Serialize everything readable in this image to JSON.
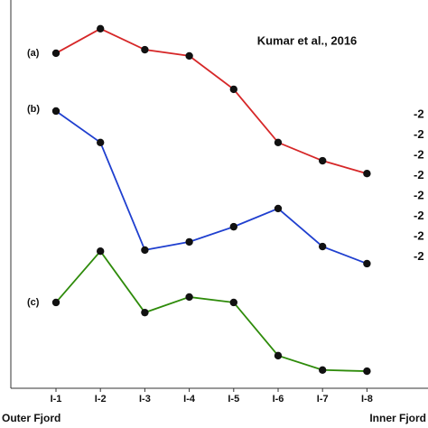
{
  "chart_data": {
    "type": "line",
    "annotation": "Kumar et al., 2016",
    "panel_labels": [
      "(a)",
      "(b)",
      "(c)"
    ],
    "categories": [
      "I-1",
      "I-2",
      "I-3",
      "I-4",
      "I-5",
      "I-6",
      "I-7",
      "I-8"
    ],
    "x_end_labels": [
      "Outer Fjord",
      "Inner Fjord"
    ],
    "right_tick_labels": [
      "-2",
      "-2",
      "-2",
      "-2",
      "-2",
      "-2",
      "-2",
      "-2"
    ],
    "ylim": [
      0,
      100
    ],
    "series": [
      {
        "color": "#d62728",
        "values": [
          86.3,
          92.6,
          87.2,
          85.6,
          77.0,
          63.3,
          58.6,
          55.3
        ]
      },
      {
        "color": "#1f3fcf",
        "values": [
          71.4,
          63.3,
          35.6,
          37.7,
          41.6,
          46.3,
          36.5,
          32.1
        ]
      },
      {
        "color": "#2e8b0a",
        "values": [
          22.1,
          35.3,
          19.5,
          23.5,
          22.1,
          8.4,
          4.7,
          4.4
        ]
      }
    ]
  }
}
